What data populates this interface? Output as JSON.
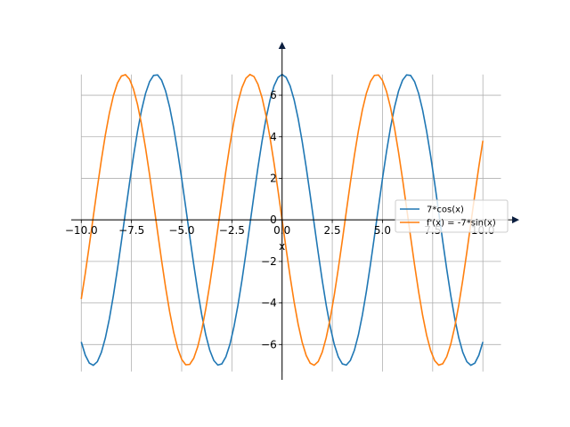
{
  "chart_data": {
    "type": "line",
    "title": "",
    "xlabel": "x",
    "ylabel": "",
    "xlim": [
      -10.5,
      11.5
    ],
    "ylim": [
      -7.7,
      8.1
    ],
    "grid": true,
    "axes_style": "centered-spines-with-arrows",
    "legend_position": "center-right",
    "x_ticks": [
      -10.0,
      -7.5,
      -5.0,
      -2.5,
      0.0,
      2.5,
      5.0,
      7.5,
      10.0
    ],
    "x_tick_labels": [
      "−10.0",
      "−7.5",
      "−5.0",
      "−2.5",
      "0.0",
      "2.5",
      "5.0",
      "7.5",
      "10.0"
    ],
    "y_ticks": [
      -6,
      -4,
      -2,
      0,
      2,
      4,
      6
    ],
    "y_tick_labels": [
      "−6",
      "−4",
      "−2",
      "0",
      "2",
      "4",
      "6"
    ],
    "x_domain": [
      -10,
      10
    ],
    "series": [
      {
        "name": "7*cos(x)",
        "function": "7*cos(x)",
        "color": "#1f77b4"
      },
      {
        "name": "f'(x) = -7*sin(x)",
        "function": "-7*sin(x)",
        "color": "#ff7f0e"
      }
    ]
  }
}
